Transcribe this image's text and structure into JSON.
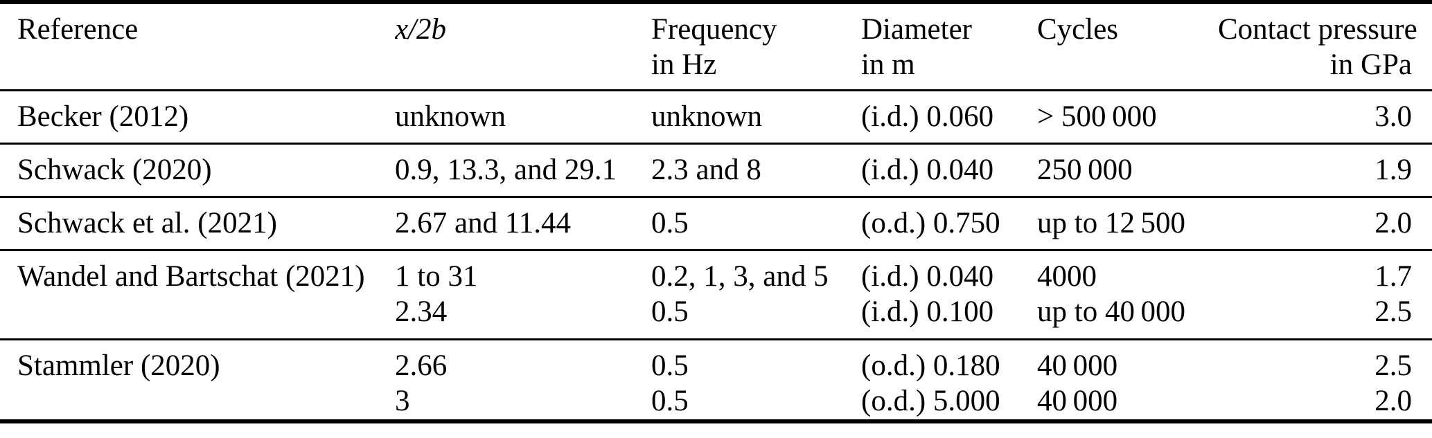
{
  "table": {
    "columns": [
      {
        "label": "Reference",
        "sub": ""
      },
      {
        "label": "x/2b",
        "sub": ""
      },
      {
        "label": "Frequency",
        "sub": "in Hz"
      },
      {
        "label": "Diameter",
        "sub": "in m"
      },
      {
        "label": "Cycles",
        "sub": ""
      },
      {
        "label": "Contact pressure",
        "sub": "in GPa"
      }
    ],
    "rows": [
      {
        "cells": [
          [
            "Becker (2012)"
          ],
          [
            "unknown"
          ],
          [
            "unknown"
          ],
          [
            "(i.d.) 0.060"
          ],
          [
            "> 500 000"
          ],
          [
            "3.0"
          ]
        ]
      },
      {
        "cells": [
          [
            "Schwack (2020)"
          ],
          [
            "0.9, 13.3, and 29.1"
          ],
          [
            "2.3 and 8"
          ],
          [
            "(i.d.) 0.040"
          ],
          [
            "250 000"
          ],
          [
            "1.9"
          ]
        ]
      },
      {
        "cells": [
          [
            "Schwack et al. (2021)"
          ],
          [
            "2.67 and 11.44"
          ],
          [
            "0.5"
          ],
          [
            "(o.d.) 0.750"
          ],
          [
            "up to 12 500"
          ],
          [
            "2.0"
          ]
        ]
      },
      {
        "cells": [
          [
            "Wandel and Bartschat (2021)",
            ""
          ],
          [
            "1 to 31",
            "2.34"
          ],
          [
            "0.2, 1, 3, and 5",
            "0.5"
          ],
          [
            "(i.d.) 0.040",
            "(i.d.) 0.100"
          ],
          [
            "4000",
            "up to 40 000"
          ],
          [
            "1.7",
            "2.5"
          ]
        ]
      },
      {
        "cells": [
          [
            "Stammler (2020)",
            ""
          ],
          [
            "2.66",
            "3"
          ],
          [
            "0.5",
            "0.5"
          ],
          [
            "(o.d.) 0.180",
            "(o.d.) 5.000"
          ],
          [
            "40 000",
            "40 000"
          ],
          [
            "2.5",
            "2.0"
          ]
        ]
      }
    ]
  }
}
